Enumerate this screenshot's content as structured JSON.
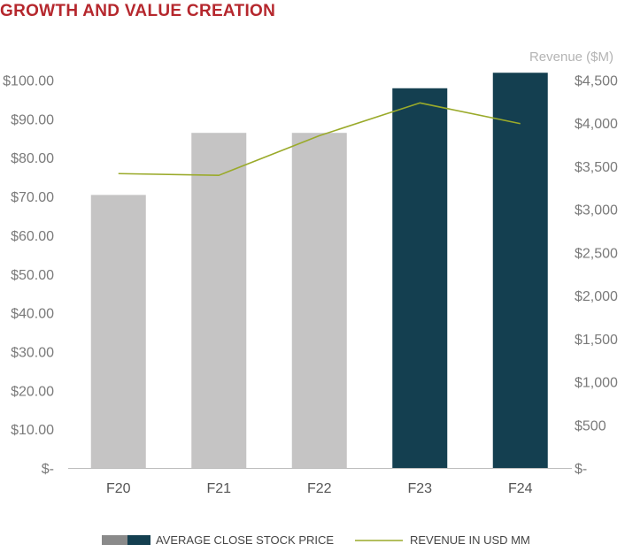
{
  "chart_data": {
    "type": "bar",
    "title": "GROWTH AND VALUE CREATION",
    "title_color": "#b5272d",
    "categories": [
      "F20",
      "F21",
      "F22",
      "F23",
      "F24"
    ],
    "left_axis": {
      "ylim": [
        0,
        100
      ],
      "ticks": [
        0,
        10,
        20,
        30,
        40,
        50,
        60,
        70,
        80,
        90,
        100
      ],
      "tick_labels": [
        "$-",
        "$10.00",
        "$20.00",
        "$30.00",
        "$40.00",
        "$50.00",
        "$60.00",
        "$70.00",
        "$80.00",
        "$90.00",
        "$100.00"
      ]
    },
    "right_axis": {
      "label": "Revenue ($M)",
      "ylim": [
        0,
        4500
      ],
      "ticks": [
        0,
        500,
        1000,
        1500,
        2000,
        2500,
        3000,
        3500,
        4000,
        4500
      ],
      "tick_labels": [
        "$-",
        "$500",
        "$1,000",
        "$1,500",
        "$2,000",
        "$2,500",
        "$3,000",
        "$3,500",
        "$4,000",
        "$4,500"
      ]
    },
    "series": [
      {
        "name": "AVERAGE CLOSE STOCK PRICE",
        "type": "bar",
        "axis": "left",
        "values": [
          70.5,
          86.5,
          86.5,
          98.0,
          102.0
        ],
        "colors": [
          "#c5c4c4",
          "#c5c4c4",
          "#c5c4c4",
          "#143f50",
          "#143f50"
        ]
      },
      {
        "name": "REVENUE IN USD MM",
        "type": "line",
        "axis": "right",
        "values": [
          3420,
          3400,
          3860,
          4240,
          4000
        ],
        "color": "#9aaa2a"
      }
    ],
    "legend": {
      "position": "bottom",
      "bar_swatch_colors": [
        "#8a8a8a",
        "#143f50"
      ],
      "line_color": "#9aaa2a"
    },
    "tick_color": "#7a7a7a",
    "axis_line_color": "#bdbdbd"
  }
}
